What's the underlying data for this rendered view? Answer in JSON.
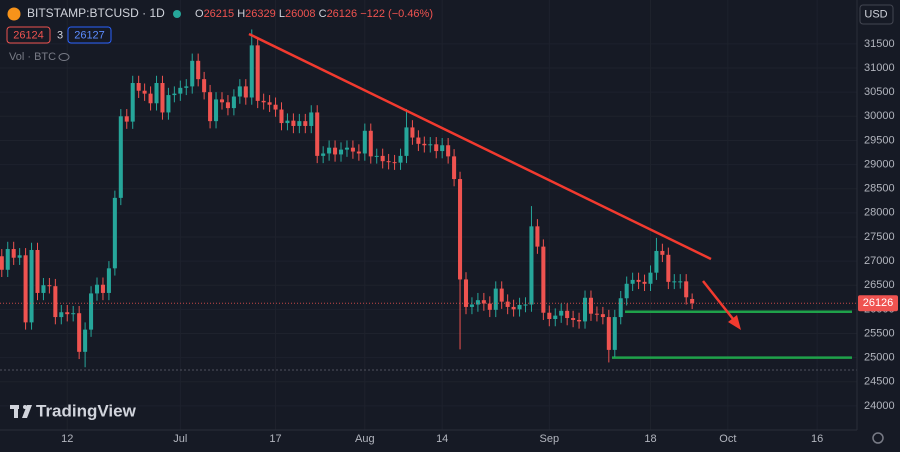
{
  "chart_data": {
    "type": "candlestick",
    "header": {
      "symbol": "BITSTAMP:BTCUSD · 1D",
      "change": "−122 (−0.46%)",
      "bid": "26124",
      "spread": "3",
      "ask": "26127",
      "volume_label": "Vol · BTC",
      "currency": "USD",
      "watermark": "TradingView"
    },
    "legend_labels": [
      "O",
      "H",
      "L",
      "C"
    ],
    "up_color": "#26a69a",
    "down_color": "#ef5350",
    "level_color": "#1fa14a",
    "levels": [
      25950,
      25000
    ],
    "x": [
      0,
      1,
      2,
      3,
      4,
      5,
      6,
      7,
      8,
      9,
      10,
      11,
      12,
      13,
      14,
      15,
      16,
      17,
      18,
      19,
      20,
      21,
      22,
      23,
      24,
      25,
      26,
      27,
      28,
      29,
      30,
      31,
      32,
      33,
      34,
      35,
      36,
      37,
      38,
      39,
      40,
      41,
      42,
      43,
      44,
      45,
      46,
      47,
      48,
      49,
      50,
      51,
      52,
      53,
      54,
      55,
      56,
      57,
      58,
      59,
      60,
      61,
      62,
      63,
      64,
      65,
      66,
      67,
      68,
      69,
      70,
      71,
      72,
      73,
      74,
      75,
      76,
      77,
      78,
      79,
      80,
      81,
      82,
      83,
      84,
      85,
      86,
      87,
      88,
      89,
      90,
      91,
      92,
      93,
      94,
      95,
      96,
      97,
      98,
      99,
      100,
      101,
      102,
      103,
      104,
      105,
      106,
      107,
      108,
      109,
      110,
      111,
      112,
      113,
      114,
      115,
      116
    ],
    "open": [
      27100,
      26820,
      27250,
      27070,
      27120,
      25730,
      27230,
      26340,
      26500,
      26480,
      25840,
      25940,
      25900,
      25920,
      25120,
      25580,
      26330,
      26510,
      26340,
      26850,
      28310,
      30000,
      29890,
      30690,
      30530,
      30470,
      30270,
      30690,
      30080,
      30440,
      30470,
      30590,
      30620,
      31150,
      30770,
      30500,
      29900,
      30350,
      30290,
      30170,
      30410,
      30620,
      30390,
      31470,
      30320,
      30290,
      30240,
      30140,
      29860,
      29910,
      29800,
      29900,
      29800,
      30080,
      29180,
      29230,
      29350,
      29210,
      29310,
      29350,
      29270,
      29230,
      29700,
      29170,
      29180,
      29070,
      29050,
      29040,
      29180,
      29770,
      29560,
      29430,
      29400,
      29420,
      29280,
      29400,
      29170,
      28700,
      26620,
      26050,
      26100,
      26190,
      26120,
      25990,
      26430,
      26160,
      26050,
      26000,
      26090,
      26100,
      27720,
      27300,
      25930,
      25800,
      25870,
      25970,
      25820,
      25780,
      25750,
      26240,
      25910,
      25900,
      25840,
      25160,
      25840,
      26230,
      26530,
      26610,
      26570,
      26530,
      26760,
      27210,
      27130,
      26570,
      26580,
      26580,
      26215
    ],
    "high": [
      27250,
      27400,
      27400,
      27270,
      27270,
      27380,
      27380,
      26650,
      26650,
      26630,
      26090,
      26090,
      26070,
      26070,
      25730,
      26480,
      26660,
      26660,
      27000,
      28460,
      30150,
      30150,
      30840,
      30840,
      30680,
      30620,
      30840,
      30840,
      30590,
      30620,
      30740,
      30770,
      31300,
      31300,
      30920,
      30650,
      30500,
      30500,
      30440,
      30560,
      30770,
      30770,
      31800,
      31620,
      30470,
      30440,
      30390,
      30290,
      30060,
      30060,
      30050,
      30050,
      30230,
      30230,
      29380,
      29500,
      29500,
      29460,
      29500,
      29500,
      29420,
      29850,
      29850,
      29330,
      29330,
      29220,
      29200,
      29330,
      30150,
      29920,
      29710,
      29580,
      29570,
      29570,
      29550,
      29550,
      29320,
      28850,
      26770,
      26250,
      26340,
      26340,
      26270,
      26580,
      26580,
      26310,
      26200,
      26240,
      26250,
      28140,
      27870,
      27450,
      26080,
      26020,
      26120,
      26120,
      25970,
      25930,
      26390,
      26390,
      26060,
      26050,
      25990,
      25990,
      26380,
      26680,
      26760,
      26760,
      26720,
      26910,
      27480,
      27360,
      27280,
      26730,
      26730,
      26730,
      26329
    ],
    "low": [
      26670,
      26670,
      26920,
      26920,
      25580,
      25580,
      26190,
      26190,
      26330,
      25690,
      25690,
      25750,
      25750,
      24970,
      24800,
      25430,
      26180,
      26190,
      26190,
      26700,
      28160,
      29740,
      29740,
      30380,
      30320,
      30120,
      30120,
      29930,
      29930,
      30290,
      30320,
      30440,
      30470,
      30620,
      30350,
      29750,
      29750,
      30140,
      30020,
      30020,
      30260,
      30240,
      30240,
      30170,
      30140,
      30090,
      29990,
      29710,
      29710,
      29650,
      29650,
      29650,
      29650,
      29030,
      29030,
      29080,
      29060,
      29060,
      29160,
      29120,
      29080,
      29080,
      29020,
      29020,
      28920,
      28900,
      28890,
      28890,
      29030,
      29410,
      29280,
      29250,
      29250,
      29130,
      29130,
      29020,
      28550,
      25170,
      25900,
      25900,
      25950,
      25970,
      25840,
      25840,
      26010,
      25900,
      25850,
      25850,
      25940,
      25950,
      27150,
      25780,
      25650,
      25650,
      25720,
      25670,
      25630,
      25600,
      25600,
      25760,
      25750,
      25690,
      24900,
      25010,
      25690,
      26080,
      26380,
      26420,
      26380,
      26380,
      26610,
      26980,
      26420,
      26420,
      26430,
      26100,
      26008
    ],
    "close": [
      26820,
      27250,
      27070,
      27120,
      25730,
      27230,
      26340,
      26500,
      26480,
      25840,
      25940,
      25900,
      25920,
      25120,
      25580,
      26330,
      26510,
      26340,
      26850,
      28310,
      30000,
      29890,
      30690,
      30530,
      30470,
      30270,
      30690,
      30080,
      30440,
      30470,
      30590,
      30620,
      31150,
      30770,
      30500,
      29900,
      30350,
      30290,
      30170,
      30410,
      30620,
      30390,
      31470,
      30320,
      30290,
      30240,
      30140,
      29860,
      29910,
      29800,
      29900,
      29800,
      30080,
      29180,
      29230,
      29350,
      29210,
      29310,
      29350,
      29270,
      29230,
      29700,
      29170,
      29180,
      29070,
      29050,
      29040,
      29180,
      29770,
      29560,
      29430,
      29400,
      29420,
      29280,
      29400,
      29170,
      28700,
      26620,
      26050,
      26100,
      26190,
      26120,
      25990,
      26430,
      26160,
      26050,
      26000,
      26090,
      26100,
      27720,
      27300,
      25930,
      25800,
      25870,
      25970,
      25820,
      25780,
      25750,
      26240,
      25910,
      25900,
      25840,
      25160,
      25840,
      26230,
      26530,
      26610,
      26570,
      26530,
      26760,
      27210,
      27130,
      26570,
      26580,
      26580,
      26250,
      26126
    ],
    "xlim": [
      -0.3,
      143.7
    ],
    "xticks": [
      {
        "value": 11,
        "label": "12"
      },
      {
        "value": 30,
        "label": "Jul"
      },
      {
        "value": 46,
        "label": "17"
      },
      {
        "value": 61,
        "label": "Aug"
      },
      {
        "value": 74,
        "label": "14"
      },
      {
        "value": 92,
        "label": "Sep"
      },
      {
        "value": 109,
        "label": "18"
      },
      {
        "value": 122,
        "label": "Oct"
      },
      {
        "value": 137,
        "label": "16"
      }
    ],
    "ylim": [
      23500,
      32410
    ],
    "yticks": [
      24000,
      24500,
      25000,
      25500,
      26000,
      26500,
      27000,
      27500,
      28000,
      28500,
      29000,
      29500,
      30000,
      30500,
      31000,
      31500
    ],
    "grid": true
  }
}
